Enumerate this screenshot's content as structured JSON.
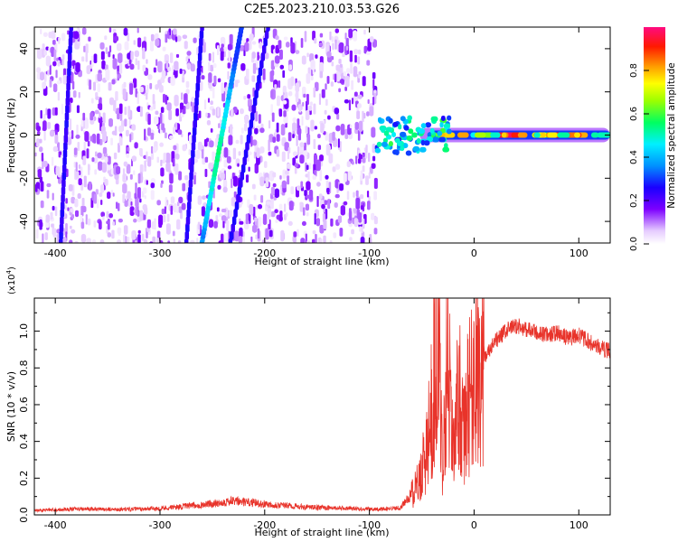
{
  "figure_title": "C2E5.2023.210.03.53.G26",
  "chart_data": [
    {
      "type": "heatmap",
      "title": "C2E5.2023.210.03.53.G26",
      "xlabel": "Height of straight line (km)",
      "ylabel": "Frequency (Hz)",
      "xlim": [
        -420,
        130
      ],
      "ylim": [
        -50,
        50
      ],
      "x_ticks": [
        -400,
        -300,
        -200,
        -100,
        0,
        100
      ],
      "y_ticks": [
        -40,
        -20,
        0,
        20,
        40
      ],
      "colorbar": {
        "label": "Normalized spectral amplitude",
        "range": [
          0.0,
          1.0
        ],
        "ticks": [
          0.0,
          0.2,
          0.4,
          0.6,
          0.8
        ]
      },
      "features": {
        "noise_region_x": [
          -420,
          -95
        ],
        "strong_track": {
          "x": [
            -260,
            -222
          ],
          "y": [
            -50,
            50
          ],
          "peak_amplitude": 0.5
        },
        "weak_tracks": [
          {
            "x": [
              -233,
              -197
            ],
            "y": [
              -50,
              50
            ]
          },
          {
            "x": [
              -275,
              -260
            ],
            "y": [
              -50,
              50
            ]
          },
          {
            "x": [
              -395,
              -385
            ],
            "y": [
              -50,
              50
            ]
          }
        ],
        "line_region": {
          "x": [
            -95,
            130
          ],
          "y_center": 0,
          "peak_amplitude": 0.9
        }
      },
      "grid": false
    },
    {
      "type": "line",
      "xlabel": "Height of straight line (km)",
      "ylabel": "SNR (10 * v/v)",
      "y_multiplier": "(x10^4)",
      "y_multiplier_base": "(x10",
      "y_multiplier_exp": "4",
      "y_multiplier_close": ")",
      "xlim": [
        -420,
        130
      ],
      "ylim": [
        0,
        11800
      ],
      "x_ticks": [
        -400,
        -300,
        -200,
        -100,
        0,
        100
      ],
      "y_ticks": [
        0.0,
        0.2,
        0.4,
        0.6,
        0.8,
        1.0
      ],
      "color": "#e8332a",
      "series": [
        {
          "x": [
            -420,
            -380,
            -340,
            -300,
            -260,
            -230,
            -200,
            -160,
            -120,
            -90,
            -70,
            -55,
            -45,
            -40,
            -35,
            -30,
            -25,
            -20,
            -15,
            -10,
            -5,
            0,
            10,
            20,
            30,
            40,
            50,
            60,
            70,
            80,
            90,
            100,
            110,
            120,
            130
          ],
          "values": [
            250,
            320,
            300,
            350,
            550,
            750,
            600,
            420,
            350,
            300,
            400,
            1500,
            3500,
            6000,
            11000,
            2500,
            9500,
            3000,
            7000,
            4000,
            6500,
            7500,
            8500,
            9400,
            10000,
            10300,
            10100,
            9900,
            9800,
            9900,
            9600,
            9800,
            9400,
            9100,
            8900
          ]
        }
      ],
      "grid": false
    }
  ]
}
